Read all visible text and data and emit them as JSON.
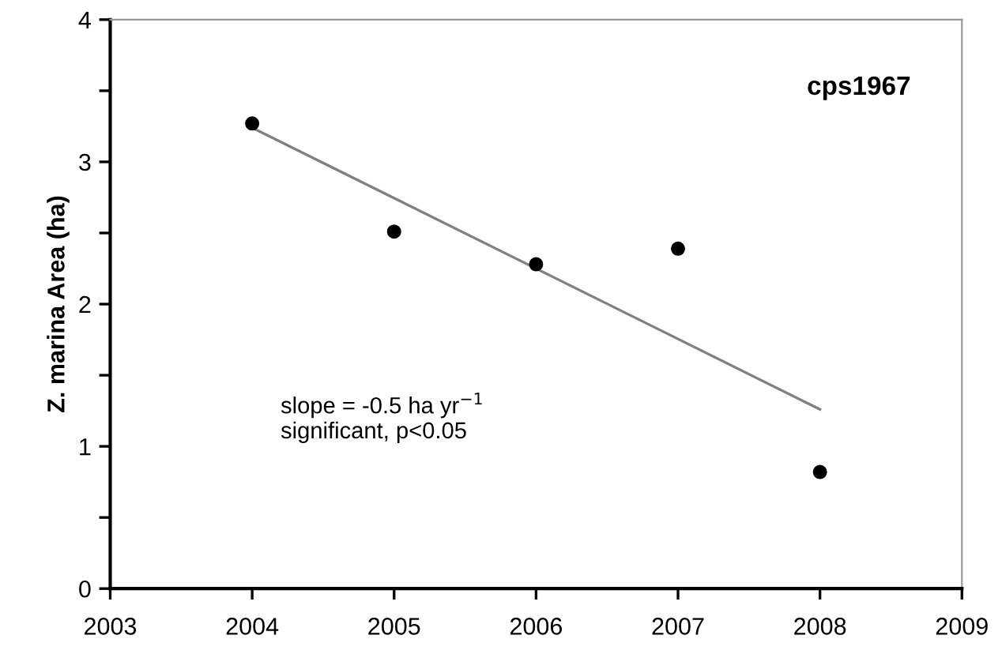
{
  "chart_data": {
    "type": "scatter",
    "title": "cps1967",
    "ylabel": "Z. marina Area (ha)",
    "xlim": [
      2003,
      2009
    ],
    "xticks": [
      2003,
      2004,
      2005,
      2006,
      2007,
      2008,
      2009
    ],
    "ylim": [
      0,
      4
    ],
    "yticks": [
      0,
      {
        "value": 0.5,
        "label": null
      },
      1,
      {
        "value": 1.5,
        "label": null
      },
      2,
      {
        "value": 2.5,
        "label": null
      },
      3,
      {
        "value": 3.5,
        "label": null
      },
      4
    ],
    "grid": false,
    "legend": false,
    "series": [
      {
        "marker": "circle",
        "color": "#000000",
        "x": [
          2004,
          2005,
          2006,
          2007,
          2008
        ],
        "values": [
          3.27,
          2.51,
          2.28,
          2.39,
          0.82
        ]
      },
      {
        "type": "line",
        "color": "#808080",
        "x": [
          2004,
          2008
        ],
        "values": [
          3.24,
          1.26
        ],
        "marker": "none",
        "line_style": "solid"
      }
    ],
    "annotations": [
      "slope = -0.5 ha yr$^{−1}$\nsignificant, p<0.05"
    ]
  }
}
